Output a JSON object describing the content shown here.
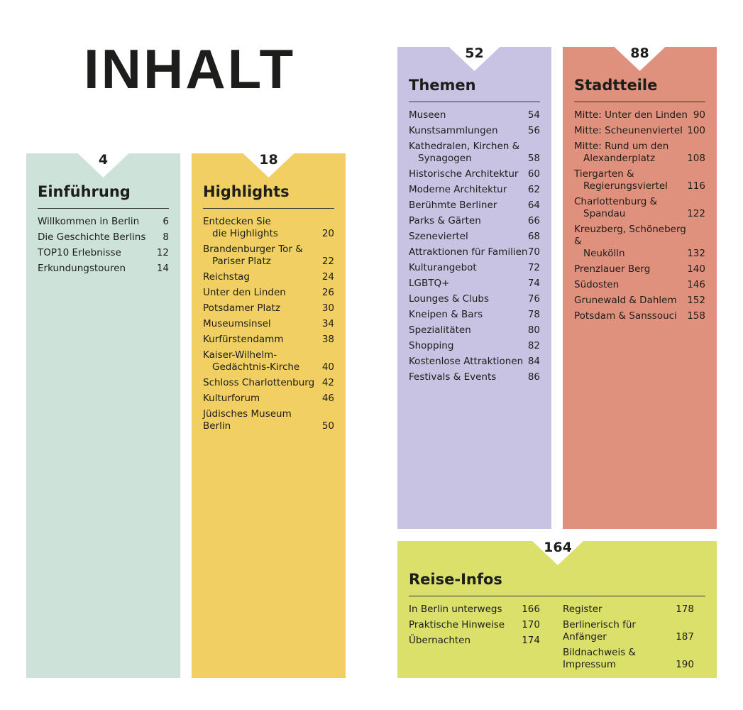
{
  "title": "INHALT",
  "sections": [
    {
      "page": 4,
      "title": "Einführung",
      "entries": [
        {
          "lines": [
            "Willkommen in Berlin"
          ],
          "page": 6
        },
        {
          "lines": [
            "Die Geschichte Berlins"
          ],
          "page": 8
        },
        {
          "lines": [
            "TOP10 Erlebnisse"
          ],
          "page": 12
        },
        {
          "lines": [
            "Erkundungstouren"
          ],
          "page": 14
        }
      ]
    },
    {
      "page": 18,
      "title": "Highlights",
      "entries": [
        {
          "lines": [
            "Entdecken Sie",
            "die Highlights"
          ],
          "page": 20
        },
        {
          "lines": [
            "Brandenburger Tor &",
            "Pariser Platz"
          ],
          "page": 22
        },
        {
          "lines": [
            "Reichstag"
          ],
          "page": 24
        },
        {
          "lines": [
            "Unter den Linden"
          ],
          "page": 26
        },
        {
          "lines": [
            "Potsdamer Platz"
          ],
          "page": 30
        },
        {
          "lines": [
            "Museumsinsel"
          ],
          "page": 34
        },
        {
          "lines": [
            "Kurfürstendamm"
          ],
          "page": 38
        },
        {
          "lines": [
            "Kaiser-Wilhelm-",
            "Gedächtnis-Kirche"
          ],
          "page": 40
        },
        {
          "lines": [
            "Schloss Charlottenburg"
          ],
          "page": 42
        },
        {
          "lines": [
            "Kulturforum"
          ],
          "page": 46
        },
        {
          "lines": [
            "Jüdisches Museum Berlin"
          ],
          "page": 50
        }
      ]
    },
    {
      "page": 52,
      "title": "Themen",
      "entries": [
        {
          "lines": [
            "Museen"
          ],
          "page": 54
        },
        {
          "lines": [
            "Kunstsammlungen"
          ],
          "page": 56
        },
        {
          "lines": [
            "Kathedralen, Kirchen &",
            "Synagogen"
          ],
          "page": 58
        },
        {
          "lines": [
            "Historische Architektur"
          ],
          "page": 60
        },
        {
          "lines": [
            "Moderne Architektur"
          ],
          "page": 62
        },
        {
          "lines": [
            "Berühmte Berliner"
          ],
          "page": 64
        },
        {
          "lines": [
            "Parks & Gärten"
          ],
          "page": 66
        },
        {
          "lines": [
            "Szeneviertel"
          ],
          "page": 68
        },
        {
          "lines": [
            "Attraktionen für Familien"
          ],
          "page": 70
        },
        {
          "lines": [
            "Kulturangebot"
          ],
          "page": 72
        },
        {
          "lines": [
            "LGBTQ+"
          ],
          "page": 74
        },
        {
          "lines": [
            "Lounges & Clubs"
          ],
          "page": 76
        },
        {
          "lines": [
            "Kneipen & Bars"
          ],
          "page": 78
        },
        {
          "lines": [
            "Spezialitäten"
          ],
          "page": 80
        },
        {
          "lines": [
            "Shopping"
          ],
          "page": 82
        },
        {
          "lines": [
            "Kostenlose Attraktionen"
          ],
          "page": 84
        },
        {
          "lines": [
            "Festivals & Events"
          ],
          "page": 86
        }
      ]
    },
    {
      "page": 88,
      "title": "Stadtteile",
      "entries": [
        {
          "lines": [
            "Mitte: Unter den Linden"
          ],
          "page": 90
        },
        {
          "lines": [
            "Mitte: Scheunenviertel"
          ],
          "page": 100
        },
        {
          "lines": [
            "Mitte: Rund um den",
            "Alexanderplatz"
          ],
          "page": 108
        },
        {
          "lines": [
            "Tiergarten &",
            "Regierungsviertel"
          ],
          "page": 116
        },
        {
          "lines": [
            "Charlottenburg &",
            "Spandau"
          ],
          "page": 122
        },
        {
          "lines": [
            "Kreuzberg, Schöneberg &",
            "Neukölln"
          ],
          "page": 132
        },
        {
          "lines": [
            "Prenzlauer Berg"
          ],
          "page": 140
        },
        {
          "lines": [
            "Südosten"
          ],
          "page": 146
        },
        {
          "lines": [
            "Grunewald & Dahlem"
          ],
          "page": 152
        },
        {
          "lines": [
            "Potsdam & Sanssouci"
          ],
          "page": 158
        }
      ]
    },
    {
      "page": 164,
      "title": "Reise-Infos",
      "columns": [
        [
          {
            "lines": [
              "In Berlin unterwegs"
            ],
            "page": 166
          },
          {
            "lines": [
              "Praktische Hinweise"
            ],
            "page": 170
          },
          {
            "lines": [
              "Übernachten"
            ],
            "page": 174
          }
        ],
        [
          {
            "lines": [
              "Register"
            ],
            "page": 178
          },
          {
            "lines": [
              "Berlinerisch für Anfänger"
            ],
            "page": 187
          },
          {
            "lines": [
              "Bildnachweis & Impressum"
            ],
            "page": 190
          }
        ]
      ]
    }
  ]
}
